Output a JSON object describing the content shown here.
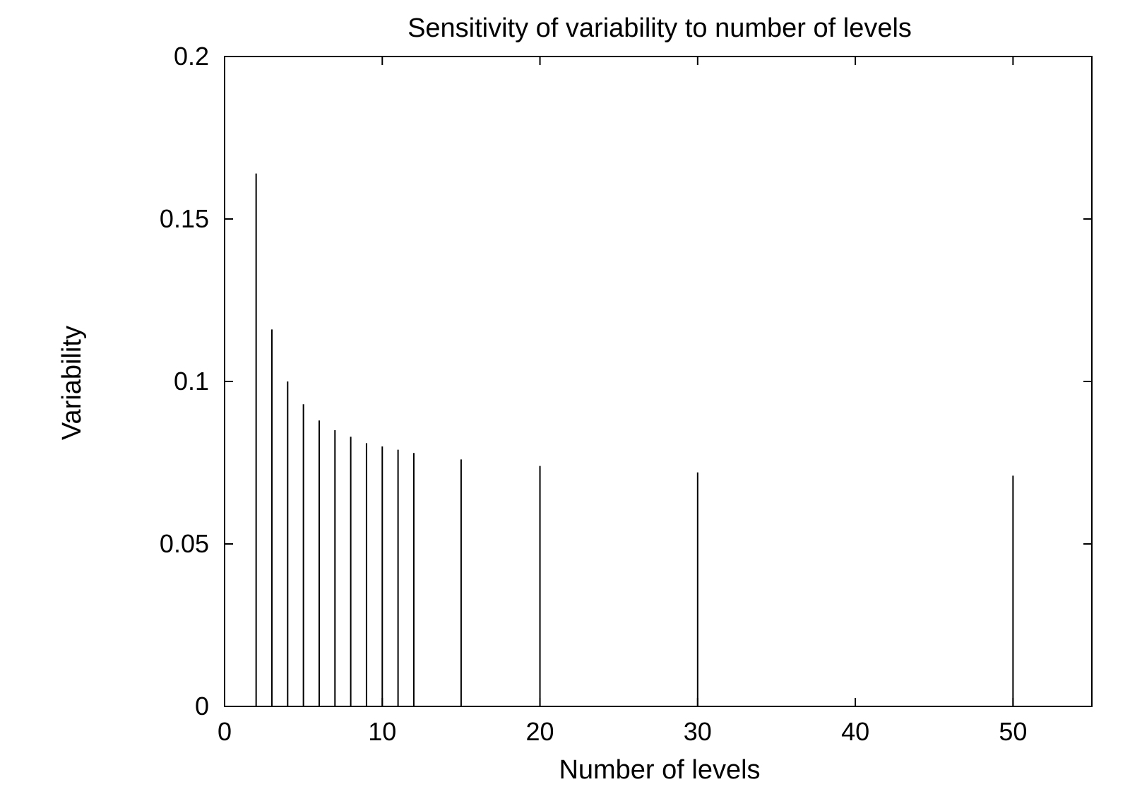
{
  "chart_data": {
    "type": "bar",
    "title": "Sensitivity of variability to number of levels",
    "xlabel": "Number of levels",
    "ylabel": "Variability",
    "xlim": [
      0,
      55
    ],
    "ylim": [
      0,
      0.2
    ],
    "x_ticks": [
      0,
      10,
      20,
      30,
      40,
      50
    ],
    "x_tick_labels": [
      "0",
      "10",
      "20",
      "30",
      "40",
      "50"
    ],
    "y_ticks": [
      0,
      0.05,
      0.1,
      0.15,
      0.2
    ],
    "y_tick_labels": [
      "0",
      "0.05",
      "0.1",
      "0.15",
      "0.2"
    ],
    "grid": false,
    "legend": "none",
    "bar_style": "impulses",
    "color": "#000000",
    "x": [
      2,
      3,
      4,
      5,
      6,
      7,
      8,
      9,
      10,
      11,
      12,
      15,
      20,
      30,
      50
    ],
    "values": [
      0.164,
      0.116,
      0.1,
      0.093,
      0.088,
      0.085,
      0.083,
      0.081,
      0.08,
      0.079,
      0.078,
      0.076,
      0.074,
      0.072,
      0.071
    ]
  }
}
